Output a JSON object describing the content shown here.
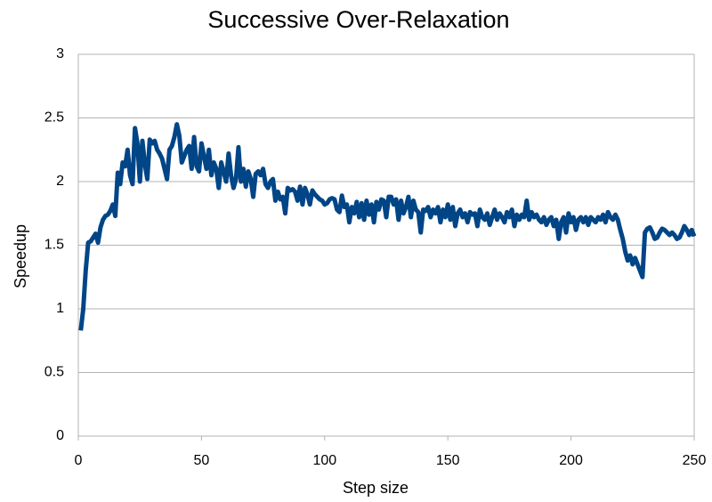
{
  "chart_data": {
    "type": "line",
    "title": "Successive Over-Relaxation",
    "x_label": "Step size",
    "y_label": "Speedup",
    "x": [
      1,
      2,
      3,
      4,
      5,
      6,
      7,
      8,
      9,
      10,
      11,
      12,
      13,
      14,
      15,
      16,
      17,
      18,
      19,
      20,
      21,
      22,
      23,
      24,
      25,
      26,
      27,
      28,
      29,
      30,
      31,
      32,
      33,
      34,
      35,
      36,
      37,
      38,
      39,
      40,
      41,
      42,
      43,
      44,
      45,
      46,
      47,
      48,
      49,
      50,
      51,
      52,
      53,
      54,
      55,
      56,
      57,
      58,
      59,
      60,
      61,
      62,
      63,
      64,
      65,
      66,
      67,
      68,
      69,
      70,
      71,
      72,
      73,
      74,
      75,
      76,
      77,
      78,
      79,
      80,
      81,
      82,
      83,
      84,
      85,
      86,
      87,
      88,
      89,
      90,
      91,
      92,
      93,
      94,
      95,
      96,
      97,
      98,
      99,
      100,
      101,
      102,
      103,
      104,
      105,
      106,
      107,
      108,
      109,
      110,
      111,
      112,
      113,
      114,
      115,
      116,
      117,
      118,
      119,
      120,
      121,
      122,
      123,
      124,
      125,
      126,
      127,
      128,
      129,
      130,
      131,
      132,
      133,
      134,
      135,
      136,
      137,
      138,
      139,
      140,
      141,
      142,
      143,
      144,
      145,
      146,
      147,
      148,
      149,
      150,
      151,
      152,
      153,
      154,
      155,
      156,
      157,
      158,
      159,
      160,
      161,
      162,
      163,
      164,
      165,
      166,
      167,
      168,
      169,
      170,
      171,
      172,
      173,
      174,
      175,
      176,
      177,
      178,
      179,
      180,
      181,
      182,
      183,
      184,
      185,
      186,
      187,
      188,
      189,
      190,
      191,
      192,
      193,
      194,
      195,
      196,
      197,
      198,
      199,
      200,
      201,
      202,
      203,
      204,
      205,
      206,
      207,
      208,
      209,
      210,
      211,
      212,
      213,
      214,
      215,
      216,
      217,
      218,
      219,
      220,
      221,
      222,
      223,
      224,
      225,
      226,
      227,
      228,
      229,
      230,
      231,
      232,
      233,
      234,
      235,
      236,
      237,
      238,
      239,
      240,
      241,
      242,
      243,
      244,
      245,
      246,
      247,
      248,
      249,
      250
    ],
    "series": [
      {
        "name": "Speedup",
        "color": "#004586",
        "values": [
          0.83,
          1.0,
          1.3,
          1.52,
          1.53,
          1.56,
          1.59,
          1.52,
          1.64,
          1.7,
          1.73,
          1.74,
          1.77,
          1.82,
          1.73,
          2.07,
          1.98,
          2.15,
          2.12,
          2.25,
          2.05,
          1.98,
          2.42,
          2.3,
          2.0,
          2.32,
          2.14,
          2.02,
          2.33,
          2.3,
          2.32,
          2.25,
          2.22,
          2.18,
          2.1,
          2.02,
          2.25,
          2.28,
          2.35,
          2.45,
          2.36,
          2.15,
          2.2,
          2.25,
          2.28,
          2.1,
          2.35,
          2.12,
          2.08,
          2.3,
          2.2,
          2.1,
          2.25,
          2.05,
          2.15,
          2.1,
          1.95,
          2.15,
          2.08,
          2.0,
          2.22,
          2.05,
          1.95,
          2.02,
          2.27,
          2.0,
          2.1,
          1.96,
          2.08,
          2.02,
          1.88,
          2.06,
          2.08,
          2.05,
          2.1,
          1.98,
          1.95,
          2.0,
          2.02,
          1.85,
          1.92,
          1.86,
          1.88,
          1.75,
          1.95,
          1.93,
          1.94,
          1.92,
          1.85,
          1.96,
          1.82,
          1.95,
          1.9,
          1.82,
          1.93,
          1.9,
          1.88,
          1.86,
          1.85,
          1.82,
          1.83,
          1.86,
          1.87,
          1.86,
          1.78,
          1.76,
          1.89,
          1.8,
          1.82,
          1.68,
          1.8,
          1.75,
          1.84,
          1.72,
          1.83,
          1.7,
          1.85,
          1.74,
          1.82,
          1.68,
          1.84,
          1.78,
          1.86,
          1.85,
          1.72,
          1.88,
          1.88,
          1.82,
          1.86,
          1.7,
          1.85,
          1.75,
          1.8,
          1.88,
          1.72,
          1.85,
          1.78,
          1.76,
          1.6,
          1.78,
          1.77,
          1.8,
          1.72,
          1.78,
          1.75,
          1.8,
          1.68,
          1.78,
          1.72,
          1.82,
          1.7,
          1.8,
          1.65,
          1.75,
          1.78,
          1.72,
          1.75,
          1.68,
          1.76,
          1.74,
          1.75,
          1.65,
          1.78,
          1.72,
          1.7,
          1.75,
          1.66,
          1.72,
          1.78,
          1.7,
          1.75,
          1.72,
          1.68,
          1.76,
          1.72,
          1.78,
          1.65,
          1.74,
          1.7,
          1.74,
          1.72,
          1.85,
          1.7,
          1.76,
          1.72,
          1.74,
          1.7,
          1.68,
          1.72,
          1.66,
          1.7,
          1.72,
          1.65,
          1.7,
          1.55,
          1.68,
          1.72,
          1.6,
          1.75,
          1.68,
          1.72,
          1.62,
          1.7,
          1.72,
          1.68,
          1.72,
          1.66,
          1.72,
          1.7,
          1.68,
          1.72,
          1.7,
          1.74,
          1.68,
          1.76,
          1.72,
          1.7,
          1.74,
          1.7,
          1.62,
          1.55,
          1.45,
          1.38,
          1.42,
          1.35,
          1.4,
          1.35,
          1.3,
          1.25,
          1.6,
          1.63,
          1.64,
          1.6,
          1.55,
          1.56,
          1.6,
          1.63,
          1.62,
          1.6,
          1.58,
          1.6,
          1.58,
          1.55,
          1.56,
          1.6,
          1.65,
          1.62,
          1.58,
          1.62,
          1.57
        ]
      }
    ],
    "xlim": [
      0,
      250
    ],
    "xticks": [
      0,
      50,
      100,
      150,
      200,
      250
    ],
    "ylim": [
      0,
      3
    ],
    "yticks": [
      0,
      0.5,
      1,
      1.5,
      2,
      2.5,
      3
    ],
    "grid": true
  }
}
